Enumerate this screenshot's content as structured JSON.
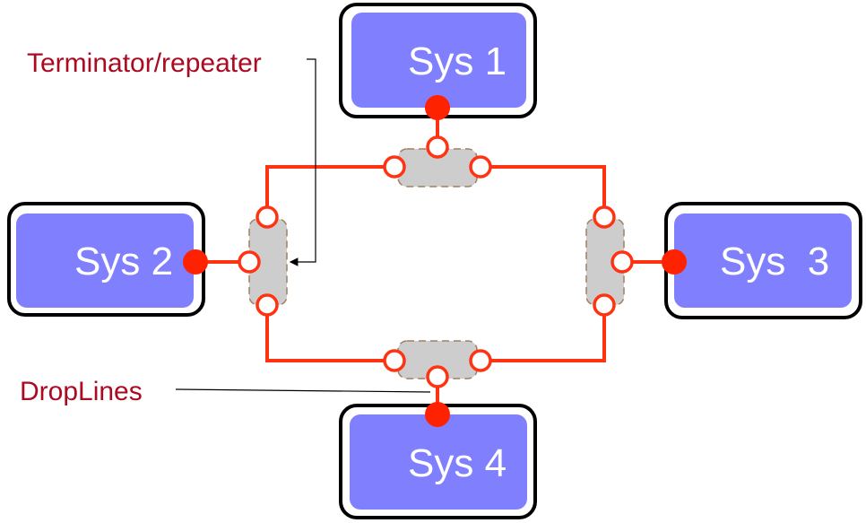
{
  "systems": {
    "sys1": "Sys 1",
    "sys2": "Sys 2",
    "sys3": "Sys  3",
    "sys4": "Sys 4"
  },
  "annotations": {
    "terminator": "Terminator/repeater",
    "droplines": "DropLines"
  },
  "colors": {
    "system_fill": "#8080ff",
    "wire": "#ff3311",
    "annotation_text": "#aa0a22",
    "coupler_fill": "#cdcdcd"
  }
}
